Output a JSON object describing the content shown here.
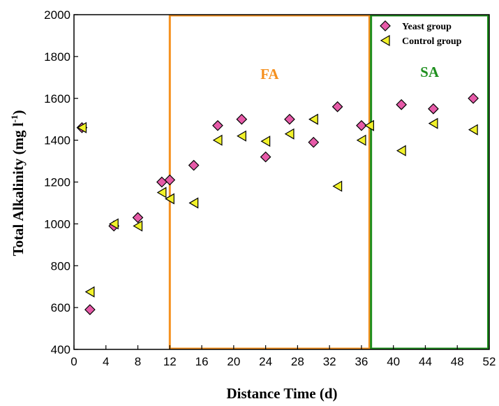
{
  "chart_data": {
    "type": "scatter",
    "xlabel": "Distance Time (d)",
    "ylabel_main": "Total Alkalinity (mg l",
    "ylabel_sup": "-1",
    "ylabel_end": ")",
    "xlim": [
      0,
      52
    ],
    "ylim": [
      400,
      2000
    ],
    "xticks": [
      0,
      4,
      8,
      12,
      16,
      20,
      24,
      28,
      32,
      36,
      40,
      44,
      48,
      52
    ],
    "yticks": [
      400,
      600,
      800,
      1000,
      1200,
      1400,
      1600,
      1800,
      2000
    ],
    "legend_position": "top-right",
    "series": [
      {
        "name": "Yeast group",
        "marker": "diamond",
        "color": "#e65aa8",
        "points": [
          [
            1,
            1460
          ],
          [
            2,
            590
          ],
          [
            5,
            990
          ],
          [
            8,
            1030
          ],
          [
            11,
            1200
          ],
          [
            12,
            1210
          ],
          [
            15,
            1280
          ],
          [
            18,
            1470
          ],
          [
            21,
            1500
          ],
          [
            24,
            1320
          ],
          [
            27,
            1500
          ],
          [
            30,
            1390
          ],
          [
            33,
            1560
          ],
          [
            36,
            1470
          ],
          [
            41,
            1570
          ],
          [
            45,
            1550
          ],
          [
            50,
            1600
          ]
        ]
      },
      {
        "name": "Control group",
        "marker": "left-triangle",
        "color": "#f2f22a",
        "points": [
          [
            1,
            1460
          ],
          [
            2,
            675
          ],
          [
            5,
            1000
          ],
          [
            8,
            990
          ],
          [
            11,
            1150
          ],
          [
            12,
            1120
          ],
          [
            15,
            1100
          ],
          [
            18,
            1400
          ],
          [
            21,
            1420
          ],
          [
            24,
            1395
          ],
          [
            27,
            1430
          ],
          [
            30,
            1500
          ],
          [
            33,
            1180
          ],
          [
            36,
            1400
          ],
          [
            37,
            1470
          ],
          [
            41,
            1350
          ],
          [
            45,
            1480
          ],
          [
            50,
            1450
          ]
        ]
      }
    ],
    "regions": [
      {
        "label": "FA",
        "x_range": [
          12,
          37
        ],
        "color": "#f5901e"
      },
      {
        "label": "SA",
        "x_range": [
          37.2,
          52
        ],
        "color": "#1e8f1e"
      }
    ]
  }
}
